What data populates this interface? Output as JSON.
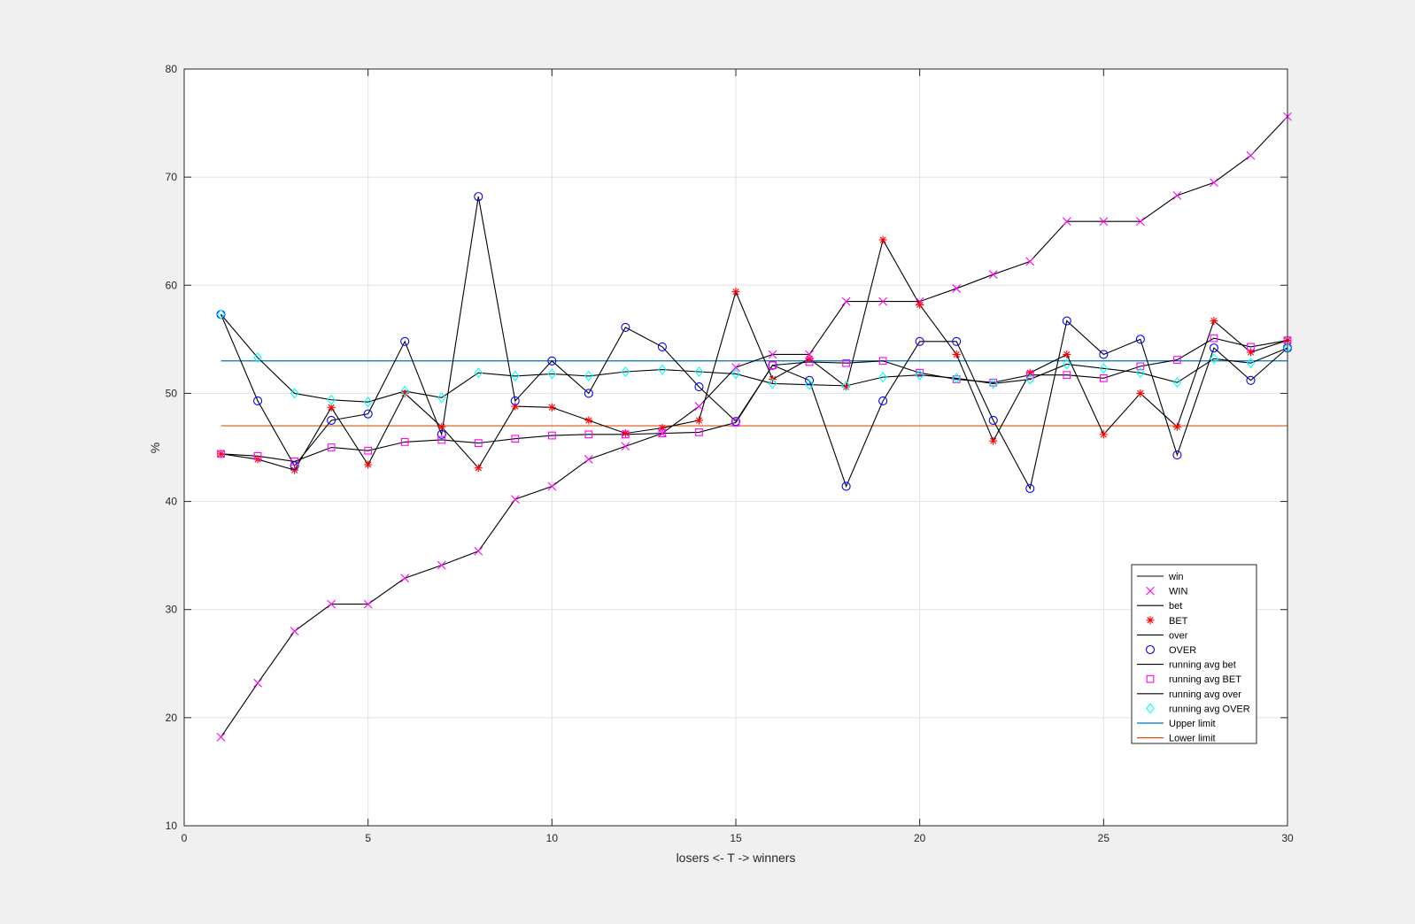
{
  "chart_data": {
    "type": "line",
    "title": "",
    "xlabel": "losers <- T -> winners",
    "ylabel": "%",
    "xlim": [
      0,
      30
    ],
    "ylim": [
      10,
      80
    ],
    "xticks": [
      0,
      5,
      10,
      15,
      20,
      25,
      30
    ],
    "yticks": [
      10,
      20,
      30,
      40,
      50,
      60,
      70,
      80
    ],
    "grid": true,
    "legend_position": "bottom-right",
    "x": [
      1,
      2,
      3,
      4,
      5,
      6,
      7,
      8,
      9,
      10,
      11,
      12,
      13,
      14,
      15,
      16,
      17,
      18,
      19,
      20,
      21,
      22,
      23,
      24,
      25,
      26,
      27,
      28,
      29,
      30
    ],
    "series": [
      {
        "name": "win",
        "legend_label": "win",
        "marker_legend_label": "WIN",
        "color": "#000000",
        "marker": "x",
        "marker_color": "#ff00ff",
        "values": [
          18.2,
          23.2,
          28.0,
          30.5,
          30.5,
          32.9,
          34.1,
          35.4,
          40.2,
          41.4,
          43.9,
          45.1,
          46.3,
          48.8,
          52.4,
          53.6,
          53.6,
          58.5,
          58.5,
          58.5,
          59.7,
          61.0,
          62.2,
          65.9,
          65.9,
          65.9,
          68.3,
          69.5,
          72.0,
          75.6
        ]
      },
      {
        "name": "bet",
        "legend_label": "bet",
        "marker_legend_label": "BET",
        "color": "#000000",
        "marker": "*",
        "marker_color": "#ff0000",
        "values": [
          44.4,
          43.9,
          42.9,
          48.7,
          43.4,
          50.0,
          46.9,
          43.1,
          48.8,
          48.7,
          47.5,
          46.3,
          46.8,
          47.5,
          59.4,
          51.3,
          53.2,
          50.6,
          64.2,
          58.2,
          53.6,
          45.6,
          51.9,
          53.6,
          46.2,
          50.0,
          46.9,
          56.7,
          53.8,
          54.9
        ]
      },
      {
        "name": "over",
        "legend_label": "over",
        "marker_legend_label": "OVER",
        "color": "#000000",
        "marker": "o",
        "marker_color": "#0000ff",
        "values": [
          57.3,
          49.3,
          43.3,
          47.5,
          48.1,
          54.8,
          46.2,
          68.2,
          49.3,
          53.0,
          50.0,
          56.1,
          54.3,
          50.6,
          47.4,
          52.6,
          51.2,
          41.4,
          49.3,
          54.8,
          54.8,
          47.5,
          41.2,
          56.7,
          53.6,
          55.0,
          44.3,
          54.2,
          51.2,
          54.2
        ]
      },
      {
        "name": "running avg bet",
        "legend_label": "running avg bet",
        "marker_legend_label": "running avg BET",
        "color": "#000000",
        "marker": "square",
        "marker_color": "#ff00ff",
        "values": [
          44.4,
          44.2,
          43.7,
          45.0,
          44.7,
          45.5,
          45.7,
          45.4,
          45.8,
          46.1,
          46.2,
          46.2,
          46.3,
          46.4,
          47.3,
          52.6,
          52.9,
          52.8,
          53.0,
          51.9,
          51.3,
          51.0,
          51.7,
          51.7,
          51.4,
          52.5,
          53.1,
          55.1,
          54.3,
          54.9
        ]
      },
      {
        "name": "running avg over",
        "legend_label": "running avg over",
        "marker_legend_label": "running avg OVER",
        "color": "#000000",
        "marker": "diamond",
        "marker_color": "#00ffff",
        "values": [
          57.3,
          53.3,
          50.0,
          49.4,
          49.2,
          50.2,
          49.6,
          51.9,
          51.6,
          51.8,
          51.6,
          52.0,
          52.2,
          52.0,
          51.8,
          50.9,
          50.8,
          50.7,
          51.5,
          51.7,
          51.4,
          50.9,
          51.3,
          52.7,
          52.3,
          51.9,
          51.0,
          53.2,
          52.8,
          54.2
        ]
      }
    ],
    "reference_lines": [
      {
        "name": "Upper limit",
        "y": 53,
        "color": "#0072bd"
      },
      {
        "name": "Lower limit",
        "y": 47,
        "color": "#d95319"
      }
    ]
  }
}
